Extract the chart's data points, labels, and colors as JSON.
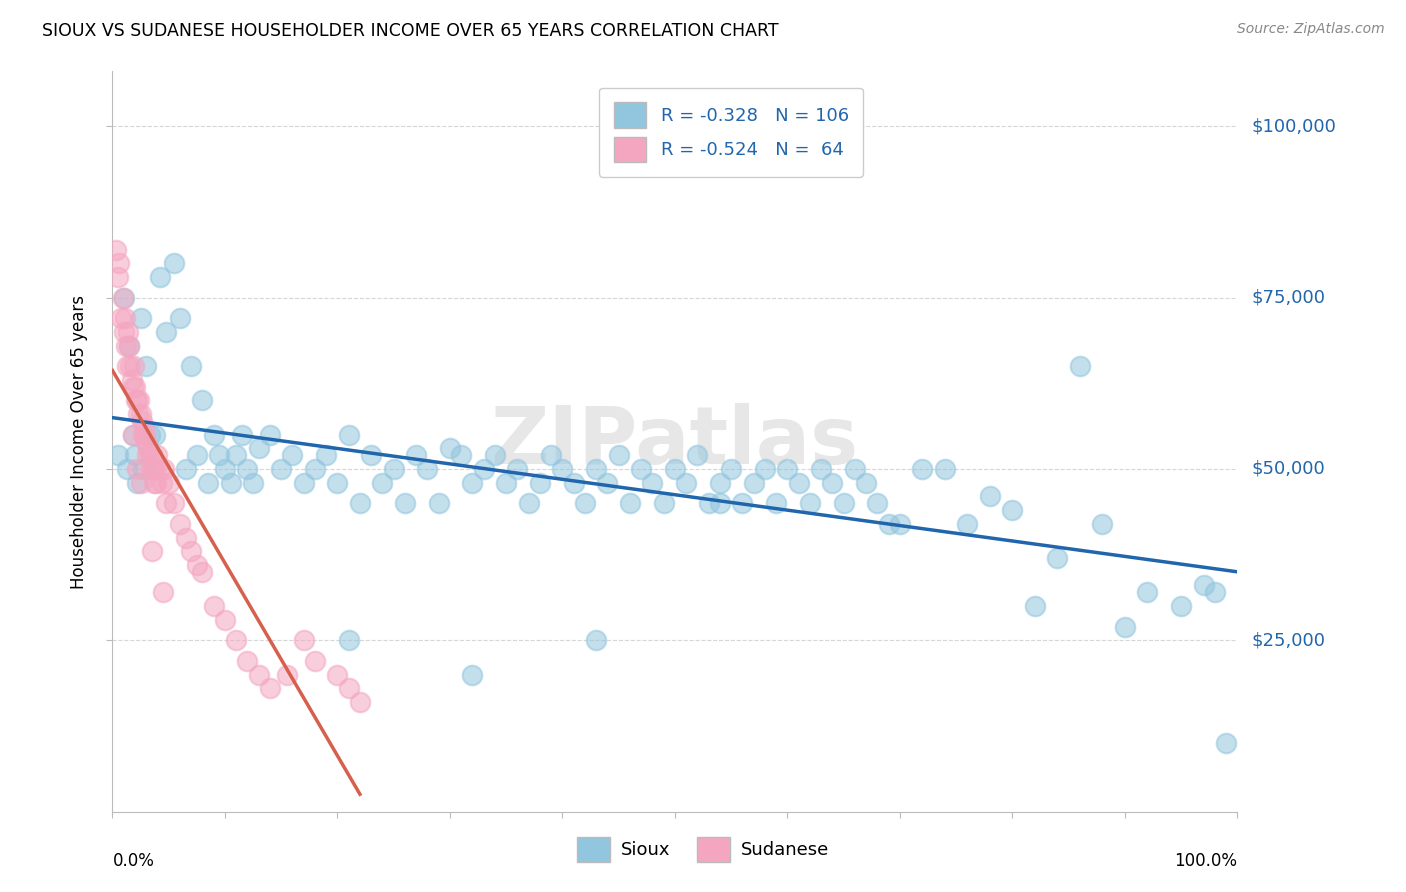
{
  "title": "SIOUX VS SUDANESE HOUSEHOLDER INCOME OVER 65 YEARS CORRELATION CHART",
  "source": "Source: ZipAtlas.com",
  "ylabel": "Householder Income Over 65 years",
  "watermark": "ZIPatlas",
  "legend_sioux_R": "-0.328",
  "legend_sioux_N": "106",
  "legend_sudanese_R": "-0.524",
  "legend_sudanese_N": "64",
  "sioux_color": "#92c5de",
  "sudanese_color": "#f4a6c0",
  "sioux_line_color": "#2166ac",
  "sudanese_line_color": "#d6604d",
  "background_color": "#ffffff",
  "grid_color": "#cccccc",
  "ytick_labels": [
    "$25,000",
    "$50,000",
    "$75,000",
    "$100,000"
  ],
  "ytick_values": [
    25000,
    50000,
    75000,
    100000
  ],
  "ymin": 0,
  "ymax": 108000,
  "xmin": 0.0,
  "xmax": 1.0,
  "sioux_x": [
    0.005,
    0.01,
    0.013,
    0.015,
    0.018,
    0.02,
    0.022,
    0.025,
    0.027,
    0.03,
    0.033,
    0.038,
    0.042,
    0.048,
    0.055,
    0.06,
    0.065,
    0.07,
    0.075,
    0.08,
    0.085,
    0.09,
    0.095,
    0.1,
    0.105,
    0.11,
    0.115,
    0.12,
    0.125,
    0.13,
    0.14,
    0.15,
    0.16,
    0.17,
    0.18,
    0.19,
    0.2,
    0.21,
    0.22,
    0.23,
    0.24,
    0.25,
    0.26,
    0.27,
    0.28,
    0.29,
    0.3,
    0.31,
    0.32,
    0.33,
    0.34,
    0.35,
    0.36,
    0.37,
    0.38,
    0.39,
    0.4,
    0.41,
    0.42,
    0.43,
    0.44,
    0.45,
    0.46,
    0.47,
    0.48,
    0.49,
    0.5,
    0.51,
    0.52,
    0.53,
    0.54,
    0.55,
    0.56,
    0.57,
    0.58,
    0.59,
    0.6,
    0.61,
    0.62,
    0.63,
    0.64,
    0.65,
    0.66,
    0.67,
    0.68,
    0.69,
    0.7,
    0.72,
    0.74,
    0.76,
    0.78,
    0.8,
    0.82,
    0.84,
    0.86,
    0.88,
    0.9,
    0.92,
    0.95,
    0.97,
    0.98,
    0.99,
    0.54,
    0.43,
    0.32,
    0.21
  ],
  "sioux_y": [
    52000,
    75000,
    50000,
    68000,
    55000,
    52000,
    48000,
    72000,
    50000,
    65000,
    55000,
    55000,
    78000,
    70000,
    80000,
    72000,
    50000,
    65000,
    52000,
    60000,
    48000,
    55000,
    52000,
    50000,
    48000,
    52000,
    55000,
    50000,
    48000,
    53000,
    55000,
    50000,
    52000,
    48000,
    50000,
    52000,
    48000,
    55000,
    45000,
    52000,
    48000,
    50000,
    45000,
    52000,
    50000,
    45000,
    53000,
    52000,
    48000,
    50000,
    52000,
    48000,
    50000,
    45000,
    48000,
    52000,
    50000,
    48000,
    45000,
    50000,
    48000,
    52000,
    45000,
    50000,
    48000,
    45000,
    50000,
    48000,
    52000,
    45000,
    48000,
    50000,
    45000,
    48000,
    50000,
    45000,
    50000,
    48000,
    45000,
    50000,
    48000,
    45000,
    50000,
    48000,
    45000,
    42000,
    42000,
    50000,
    50000,
    42000,
    46000,
    44000,
    30000,
    37000,
    65000,
    42000,
    27000,
    32000,
    30000,
    33000,
    32000,
    10000,
    45000,
    25000,
    20000,
    25000
  ],
  "sudanese_x": [
    0.003,
    0.005,
    0.006,
    0.008,
    0.009,
    0.01,
    0.011,
    0.012,
    0.013,
    0.014,
    0.015,
    0.016,
    0.017,
    0.018,
    0.019,
    0.02,
    0.021,
    0.022,
    0.023,
    0.024,
    0.025,
    0.026,
    0.027,
    0.028,
    0.029,
    0.03,
    0.031,
    0.032,
    0.033,
    0.034,
    0.035,
    0.036,
    0.037,
    0.038,
    0.039,
    0.04,
    0.042,
    0.044,
    0.046,
    0.048,
    0.05,
    0.055,
    0.06,
    0.065,
    0.07,
    0.075,
    0.08,
    0.09,
    0.1,
    0.11,
    0.12,
    0.13,
    0.14,
    0.155,
    0.17,
    0.18,
    0.2,
    0.21,
    0.22,
    0.018,
    0.022,
    0.025,
    0.035,
    0.045
  ],
  "sudanese_y": [
    82000,
    78000,
    80000,
    72000,
    75000,
    70000,
    72000,
    68000,
    65000,
    70000,
    68000,
    65000,
    63000,
    62000,
    65000,
    62000,
    60000,
    60000,
    58000,
    60000,
    58000,
    57000,
    55000,
    56000,
    55000,
    54000,
    52000,
    53000,
    52000,
    50000,
    52000,
    50000,
    48000,
    50000,
    48000,
    52000,
    50000,
    48000,
    50000,
    45000,
    48000,
    45000,
    42000,
    40000,
    38000,
    36000,
    35000,
    30000,
    28000,
    25000,
    22000,
    20000,
    18000,
    20000,
    25000,
    22000,
    20000,
    18000,
    16000,
    55000,
    50000,
    48000,
    38000,
    32000
  ]
}
